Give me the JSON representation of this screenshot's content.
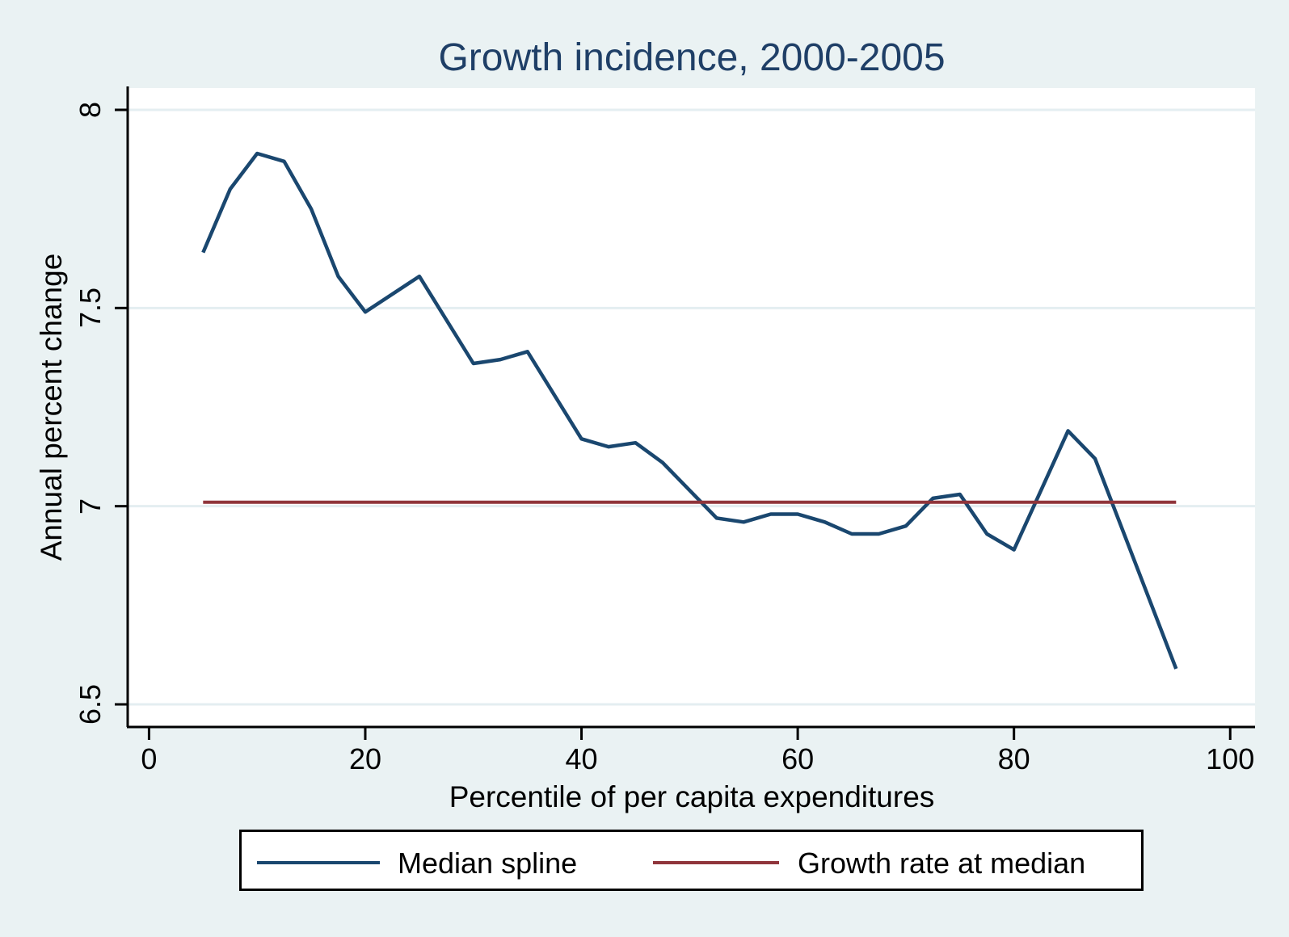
{
  "chart_data": {
    "type": "line",
    "title": "Growth incidence, 2000-2005",
    "xlabel": "Percentile of per capita expenditures",
    "ylabel": "Annual percent change",
    "xlim": [
      -1.9,
      102.3
    ],
    "ylim": [
      6.445,
      8.055
    ],
    "x_ticks": [
      {
        "value": 0,
        "label": "0"
      },
      {
        "value": 20,
        "label": "20"
      },
      {
        "value": 40,
        "label": "40"
      },
      {
        "value": 60,
        "label": "60"
      },
      {
        "value": 80,
        "label": "80"
      },
      {
        "value": 100,
        "label": "100"
      }
    ],
    "y_ticks": [
      {
        "value": 8,
        "label": "8"
      },
      {
        "value": 7.5,
        "label": "7.5"
      },
      {
        "value": 7,
        "label": "7"
      },
      {
        "value": 6.5,
        "label": "6.5"
      }
    ],
    "grid": "horizontal-only",
    "legend_position": "bottom",
    "series": [
      {
        "name": "Median spline",
        "color": "#1a476f",
        "x": [
          5,
          7.5,
          10,
          12.5,
          15,
          17.5,
          20,
          25,
          30,
          32.5,
          35,
          40,
          42.5,
          45,
          47.5,
          52.5,
          55,
          57.5,
          60,
          62.5,
          65,
          67.5,
          70,
          72.5,
          75,
          77.5,
          80,
          85,
          87.5,
          95
        ],
        "y": [
          7.64,
          7.8,
          7.89,
          7.87,
          7.75,
          7.58,
          7.49,
          7.58,
          7.36,
          7.37,
          7.39,
          7.17,
          7.15,
          7.16,
          7.11,
          6.97,
          6.96,
          6.98,
          6.98,
          6.96,
          6.93,
          6.93,
          6.95,
          7.02,
          7.03,
          6.93,
          6.89,
          7.19,
          7.12,
          6.59
        ]
      },
      {
        "name": "Growth rate at median",
        "color": "#90353b",
        "x": [
          5,
          95
        ],
        "y": [
          7.01,
          7.01
        ]
      }
    ]
  },
  "colors": {
    "background": "#eaf2f3",
    "plot_background": "#ffffff",
    "gridline": "#e4eef1",
    "axis": "#000000",
    "title_color": "#1f3f67",
    "text": "#000000",
    "legend_background": "#ffffff",
    "legend_border": "#000000"
  }
}
